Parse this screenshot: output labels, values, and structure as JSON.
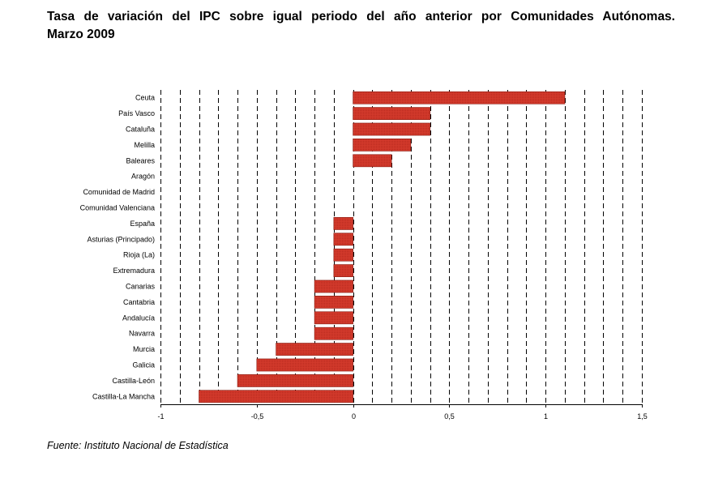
{
  "title": {
    "line1": "Tasa de variación del IPC sobre igual periodo del año anterior por Comunidades Autónomas.",
    "line2": "Marzo 2009"
  },
  "source": "Fuente: Instituto Nacional de Estadística",
  "chart_data": {
    "type": "bar",
    "orientation": "horizontal",
    "title": "Tasa de variación del IPC sobre igual periodo del año anterior por Comunidades Autónomas. Marzo 2009",
    "categories": [
      "Ceuta",
      "País Vasco",
      "Cataluña",
      "Melilla",
      "Baleares",
      "Aragón",
      "Comunidad de Madrid",
      "Comunidad Valenciana",
      "España",
      "Asturias (Principado)",
      "Rioja (La)",
      "Extremadura",
      "Canarias",
      "Cantabria",
      "Andalucía",
      "Navarra",
      "Murcia",
      "Galicia",
      "Castilla-León",
      "Castilla-La Mancha"
    ],
    "values": [
      1.1,
      0.4,
      0.4,
      0.3,
      0.2,
      0.0,
      0.0,
      0.0,
      -0.1,
      -0.1,
      -0.1,
      -0.1,
      -0.2,
      -0.2,
      -0.2,
      -0.2,
      -0.4,
      -0.5,
      -0.6,
      -0.8
    ],
    "xlim": [
      -1,
      1.5
    ],
    "xticks": [
      -1,
      -0.5,
      0,
      0.5,
      1,
      1.5
    ],
    "xtick_labels": [
      "-1",
      "-0,5",
      "0",
      "0,5",
      "1",
      "1,5"
    ],
    "grid_step": 0.1,
    "grid": "vertical dashed",
    "bar_color": "#d33a2c",
    "bar_edge_color": "#8a1c12",
    "xlabel": "",
    "ylabel": ""
  }
}
